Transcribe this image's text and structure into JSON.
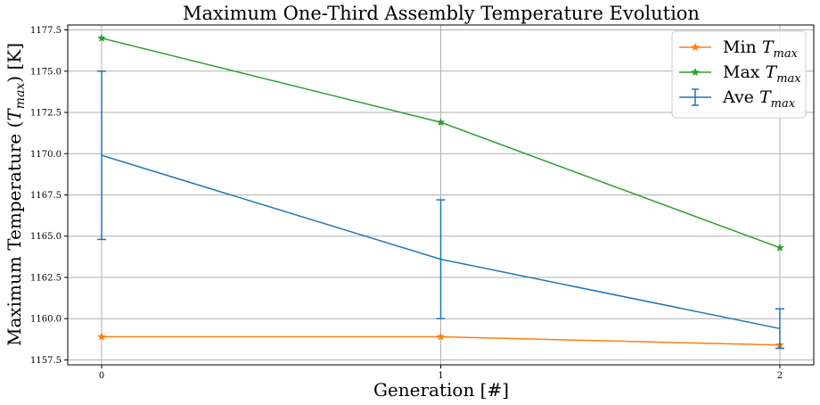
{
  "chart_data": {
    "type": "line",
    "title": "Maximum One-Third Assembly Temperature Evolution",
    "xlabel": "Generation [#]",
    "ylabel_main": "Maximum Temperature (",
    "ylabel_sym": "T",
    "ylabel_sub": "max",
    "ylabel_end": ") [K]",
    "x": [
      0,
      1,
      2
    ],
    "xlim": [
      -0.1,
      2.1
    ],
    "ylim": [
      1157.2,
      1177.8
    ],
    "x_ticks": [
      0,
      1,
      2
    ],
    "x_tick_labels": [
      "0",
      "1",
      "2"
    ],
    "y_ticks": [
      1157.5,
      1160.0,
      1162.5,
      1165.0,
      1167.5,
      1170.0,
      1172.5,
      1175.0,
      1177.5
    ],
    "y_tick_labels": [
      "1157.5",
      "1160.0",
      "1162.5",
      "1165.0",
      "1167.5",
      "1170.0",
      "1172.5",
      "1175.0",
      "1177.5"
    ],
    "grid": true,
    "legend_position": "top-right",
    "series": [
      {
        "key": "min",
        "name": "Min",
        "name_sym": "T",
        "name_sub": "max",
        "color": "#ff7f0e",
        "marker": "star",
        "values": [
          1158.9,
          1158.9,
          1158.4
        ]
      },
      {
        "key": "max",
        "name": "Max",
        "name_sym": "T",
        "name_sub": "max",
        "color": "#2ca02c",
        "marker": "star",
        "values": [
          1177.0,
          1171.9,
          1164.3
        ]
      },
      {
        "key": "ave",
        "name": "Ave",
        "name_sym": "T",
        "name_sub": "max",
        "color": "#1f77b4",
        "marker": "errorbar",
        "values": [
          1169.9,
          1163.6,
          1159.4
        ],
        "error_low": [
          1164.8,
          1160.0,
          1158.2
        ],
        "error_high": [
          1175.0,
          1167.2,
          1160.6
        ]
      }
    ]
  }
}
